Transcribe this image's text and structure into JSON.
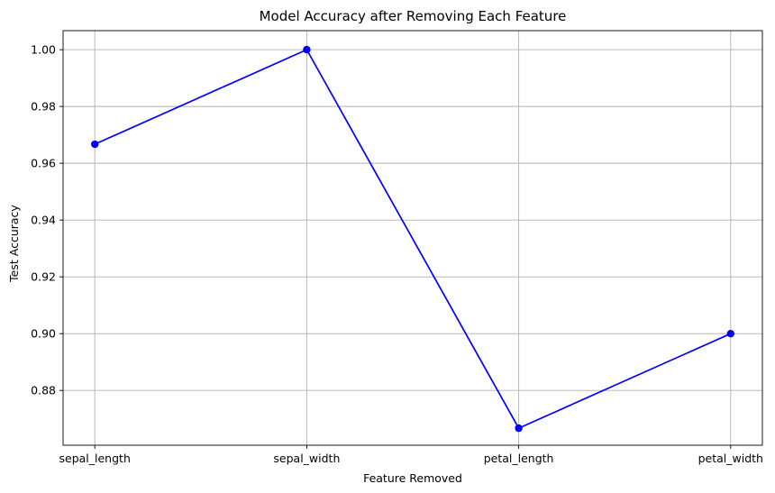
{
  "chart_data": {
    "type": "line",
    "title": "Model Accuracy after Removing Each Feature",
    "xlabel": "Feature Removed",
    "ylabel": "Test Accuracy",
    "categories": [
      "sepal_length",
      "sepal_width",
      "petal_length",
      "petal_width"
    ],
    "series": [
      {
        "values": [
          0.9667,
          1.0,
          0.8667,
          0.9
        ],
        "color": "#0000ff",
        "marker": "circle"
      }
    ],
    "ylim": [
      0.8607,
      1.0067
    ],
    "yticks": [
      0.88,
      0.9,
      0.92,
      0.94,
      0.96,
      0.98,
      1.0
    ],
    "ytick_labels": [
      "0.88",
      "0.90",
      "0.92",
      "0.94",
      "0.96",
      "0.98",
      "1.00"
    ],
    "grid": true,
    "grid_color": "#b0b0b0",
    "legend": false
  }
}
